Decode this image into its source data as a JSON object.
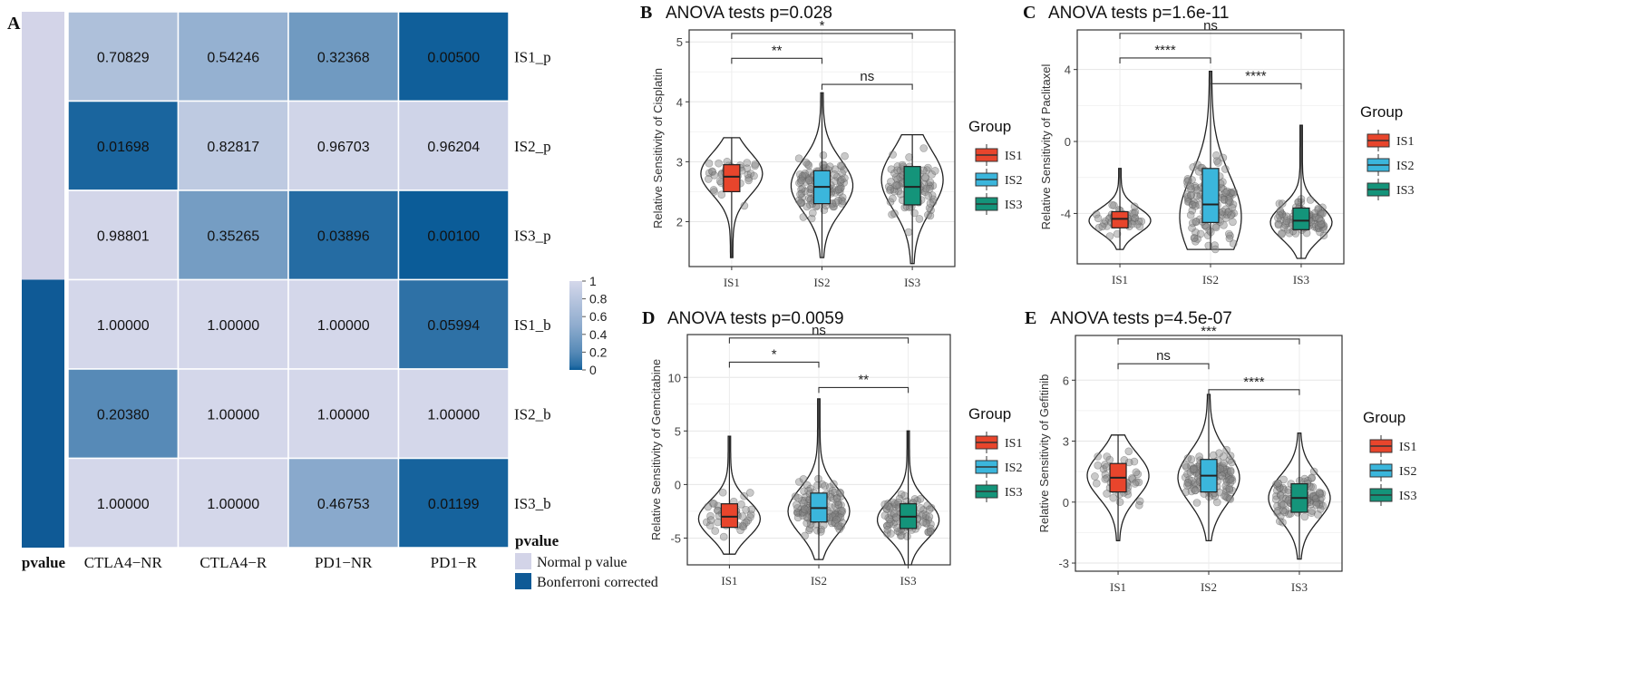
{
  "colors": {
    "low": "#085a97",
    "high": "#d4d7ea",
    "normal_bar": "#d3d4e8",
    "bonf_bar": "#0f5a96",
    "IS1": "#e8452c",
    "IS2": "#3bb6dc",
    "IS3": "#14947a"
  },
  "chart_data": [
    {
      "type": "heatmap",
      "panel_label": "A",
      "columns": [
        "CTLA4−NR",
        "CTLA4−R",
        "PD1−NR",
        "PD1−R"
      ],
      "rows": [
        "IS1_p",
        "IS2_p",
        "IS3_p",
        "IS1_b",
        "IS2_b",
        "IS3_b"
      ],
      "row_groups": [
        "normal",
        "normal",
        "normal",
        "bonferroni",
        "bonferroni",
        "bonferroni"
      ],
      "values": [
        [
          0.70829,
          0.54246,
          0.32368,
          0.005
        ],
        [
          0.01698,
          0.82817,
          0.96703,
          0.96204
        ],
        [
          0.98801,
          0.35265,
          0.03896,
          0.001
        ],
        [
          1.0,
          1.0,
          1.0,
          0.05994
        ],
        [
          0.2038,
          1.0,
          1.0,
          1.0
        ],
        [
          1.0,
          1.0,
          0.46753,
          0.01199
        ]
      ],
      "value_labels": [
        [
          "0.70829",
          "0.54246",
          "0.32368",
          "0.00500"
        ],
        [
          "0.01698",
          "0.82817",
          "0.96703",
          "0.96204"
        ],
        [
          "0.98801",
          "0.35265",
          "0.03896",
          "0.00100"
        ],
        [
          "1.00000",
          "1.00000",
          "1.00000",
          "0.05994"
        ],
        [
          "0.20380",
          "1.00000",
          "1.00000",
          "1.00000"
        ],
        [
          "1.00000",
          "1.00000",
          "0.46753",
          "0.01199"
        ]
      ],
      "colorbar": {
        "range": [
          0,
          1
        ],
        "ticks": [
          "1",
          "0.8",
          "0.6",
          "0.4",
          "0.2",
          "0"
        ]
      },
      "annotation_label": "pvalue",
      "legend": {
        "title": "pvalue",
        "items": [
          {
            "key": "normal",
            "label": "Normal p value"
          },
          {
            "key": "bonferroni",
            "label": "Bonferroni corrected"
          }
        ]
      }
    },
    {
      "type": "violin",
      "panel_label": "B",
      "title": "ANOVA tests p=0.028",
      "ylabel": "Relative Sensitivity of Cisplatin",
      "categories": [
        "IS1",
        "IS2",
        "IS3"
      ],
      "ylim": [
        1.25,
        5.2
      ],
      "yticks": [
        2,
        3,
        4,
        5
      ],
      "groups": [
        {
          "name": "IS1",
          "n": 45,
          "min": 1.4,
          "q1": 2.5,
          "median": 2.75,
          "q3": 2.95,
          "max": 3.4,
          "density_peak": 2.8
        },
        {
          "name": "IS2",
          "n": 130,
          "min": 1.4,
          "q1": 2.3,
          "median": 2.58,
          "q3": 2.85,
          "max": 4.15,
          "density_peak": 2.6
        },
        {
          "name": "IS3",
          "n": 95,
          "min": 1.3,
          "q1": 2.28,
          "median": 2.58,
          "q3": 2.92,
          "max": 3.45,
          "density_peak": 2.7
        }
      ],
      "comparisons": [
        {
          "from": "IS1",
          "to": "IS2",
          "label": "**"
        },
        {
          "from": "IS2",
          "to": "IS3",
          "label": "ns"
        },
        {
          "from": "IS1",
          "to": "IS3",
          "label": "*"
        }
      ],
      "legend": {
        "title": "Group",
        "items": [
          "IS1",
          "IS2",
          "IS3"
        ]
      }
    },
    {
      "type": "violin",
      "panel_label": "C",
      "title": "ANOVA tests p=1.6e-11",
      "ylabel": "Relative Sensitivity of Paclitaxel",
      "categories": [
        "IS1",
        "IS2",
        "IS3"
      ],
      "ylim": [
        -6.8,
        6.2
      ],
      "yticks": [
        -4,
        0,
        4
      ],
      "groups": [
        {
          "name": "IS1",
          "n": 45,
          "min": -6,
          "q1": -4.8,
          "median": -4.3,
          "q3": -3.9,
          "max": -1.5,
          "density_peak": -4.4
        },
        {
          "name": "IS2",
          "n": 130,
          "min": -6,
          "q1": -4.5,
          "median": -3.5,
          "q3": -1.5,
          "max": 3.9,
          "density_peak": -4.2
        },
        {
          "name": "IS3",
          "n": 95,
          "min": -6.5,
          "q1": -4.9,
          "median": -4.4,
          "q3": -3.7,
          "max": 0.9,
          "density_peak": -4.5
        }
      ],
      "comparisons": [
        {
          "from": "IS1",
          "to": "IS2",
          "label": "****"
        },
        {
          "from": "IS2",
          "to": "IS3",
          "label": "****"
        },
        {
          "from": "IS1",
          "to": "IS3",
          "label": "ns"
        }
      ],
      "legend": {
        "title": "Group",
        "items": [
          "IS1",
          "IS2",
          "IS3"
        ]
      }
    },
    {
      "type": "violin",
      "panel_label": "D",
      "title": "ANOVA tests p=0.0059",
      "ylabel": "Relative Sensitivity of Gemcitabine",
      "categories": [
        "IS1",
        "IS2",
        "IS3"
      ],
      "ylim": [
        -7.5,
        14
      ],
      "yticks": [
        -5,
        0,
        5,
        10
      ],
      "groups": [
        {
          "name": "IS1",
          "n": 45,
          "min": -6.5,
          "q1": -4,
          "median": -3,
          "q3": -1.8,
          "max": 4.5,
          "density_peak": -3.2
        },
        {
          "name": "IS2",
          "n": 130,
          "min": -7,
          "q1": -3.5,
          "median": -2.2,
          "q3": -0.8,
          "max": 8,
          "density_peak": -2.5
        },
        {
          "name": "IS3",
          "n": 95,
          "min": -7.5,
          "q1": -4.1,
          "median": -3,
          "q3": -1.8,
          "max": 5,
          "density_peak": -3.3
        }
      ],
      "comparisons": [
        {
          "from": "IS1",
          "to": "IS2",
          "label": "*"
        },
        {
          "from": "IS2",
          "to": "IS3",
          "label": "**"
        },
        {
          "from": "IS1",
          "to": "IS3",
          "label": "ns"
        }
      ],
      "legend": {
        "title": "Group",
        "items": [
          "IS1",
          "IS2",
          "IS3"
        ]
      }
    },
    {
      "type": "violin",
      "panel_label": "E",
      "title": "ANOVA tests p=4.5e-07",
      "ylabel": "Relative Sensitivity of Gefitinib",
      "categories": [
        "IS1",
        "IS2",
        "IS3"
      ],
      "ylim": [
        -3.4,
        8.2
      ],
      "yticks": [
        -3,
        0,
        3,
        6
      ],
      "groups": [
        {
          "name": "IS1",
          "n": 45,
          "min": -1.9,
          "q1": 0.5,
          "median": 1.2,
          "q3": 1.9,
          "max": 3.3,
          "density_peak": 1.3
        },
        {
          "name": "IS2",
          "n": 130,
          "min": -1.9,
          "q1": 0.5,
          "median": 1.3,
          "q3": 2.1,
          "max": 5.3,
          "density_peak": 1.2
        },
        {
          "name": "IS3",
          "n": 95,
          "min": -2.8,
          "q1": -0.5,
          "median": 0.2,
          "q3": 0.9,
          "max": 3.4,
          "density_peak": 0.2
        }
      ],
      "comparisons": [
        {
          "from": "IS1",
          "to": "IS2",
          "label": "ns"
        },
        {
          "from": "IS2",
          "to": "IS3",
          "label": "****"
        },
        {
          "from": "IS1",
          "to": "IS3",
          "label": "***"
        }
      ],
      "legend": {
        "title": "Group",
        "items": [
          "IS1",
          "IS2",
          "IS3"
        ]
      }
    }
  ]
}
